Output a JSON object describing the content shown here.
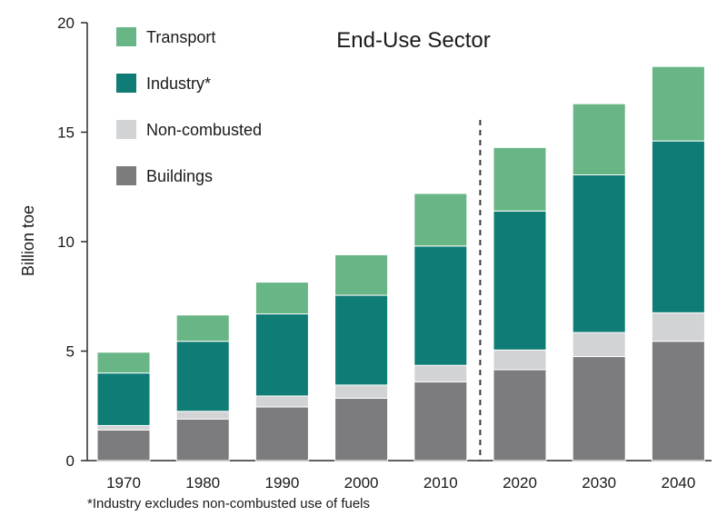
{
  "chart_data": {
    "type": "bar",
    "stacked": true,
    "title": "End-Use Sector",
    "xlabel": "",
    "ylabel": "Billion toe",
    "ylim": [
      0,
      20
    ],
    "yticks": [
      "0",
      "5",
      "10",
      "15",
      "20"
    ],
    "categories": [
      "1970",
      "1980",
      "1990",
      "2000",
      "2010",
      "2020",
      "2030",
      "2040"
    ],
    "projection_divider_after": "2010",
    "series": [
      {
        "name": "Buildings",
        "color": "#7c7c7e",
        "values": [
          1.4,
          1.9,
          2.45,
          2.85,
          3.6,
          4.15,
          4.75,
          5.45
        ]
      },
      {
        "name": "Non-combusted",
        "color": "#d2d3d5",
        "values": [
          0.2,
          0.35,
          0.5,
          0.6,
          0.75,
          0.9,
          1.1,
          1.3
        ]
      },
      {
        "name": "Industry*",
        "color": "#0f7c75",
        "values": [
          2.4,
          3.2,
          3.75,
          4.1,
          5.45,
          6.35,
          7.2,
          7.85
        ]
      },
      {
        "name": "Transport",
        "color": "#68b585",
        "values": [
          0.95,
          1.2,
          1.45,
          1.85,
          2.4,
          2.9,
          3.25,
          3.4
        ]
      }
    ],
    "legend_order": [
      "Transport",
      "Industry*",
      "Non-combusted",
      "Buildings"
    ],
    "legend_position": "top-left",
    "grid": false,
    "footnote": "*Industry excludes non-combusted use of fuels"
  }
}
